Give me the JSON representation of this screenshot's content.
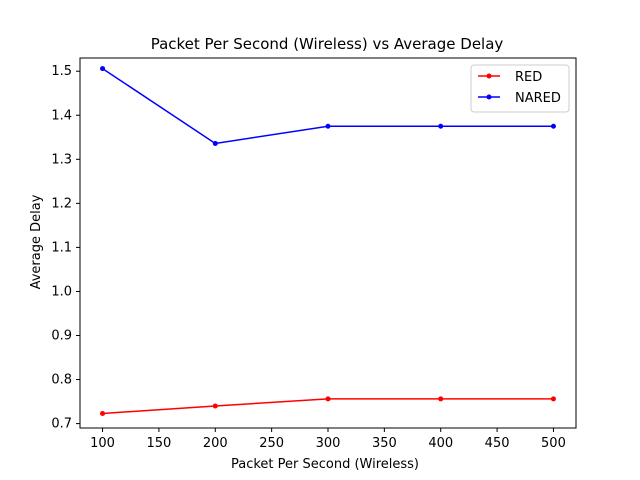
{
  "chart_data": {
    "type": "line",
    "title": "Packet Per Second (Wireless)  vs Average Delay",
    "xlabel": "Packet Per Second (Wireless)",
    "ylabel": "Average Delay",
    "x": [
      100,
      200,
      300,
      400,
      500
    ],
    "xlim": [
      80,
      520
    ],
    "ylim": [
      0.69,
      1.53
    ],
    "xticks": [
      100,
      150,
      200,
      250,
      300,
      350,
      400,
      450,
      500
    ],
    "xtick_labels": [
      "100",
      "150",
      "200",
      "250",
      "300",
      "350",
      "400",
      "450",
      "500"
    ],
    "yticks": [
      0.7,
      0.8,
      0.9,
      1.0,
      1.1,
      1.2,
      1.3,
      1.4,
      1.5
    ],
    "ytick_labels": [
      "0.7",
      "0.8",
      "0.9",
      "1.0",
      "1.1",
      "1.2",
      "1.3",
      "1.4",
      "1.5"
    ],
    "grid": false,
    "legend_position": "top-right",
    "series": [
      {
        "name": "RED",
        "color": "#ff0000",
        "marker": "dot",
        "values": [
          0.723,
          0.74,
          0.756,
          0.756,
          0.756
        ]
      },
      {
        "name": "NARED",
        "color": "#0000ff",
        "marker": "dot",
        "values": [
          1.506,
          1.336,
          1.375,
          1.375,
          1.375
        ]
      }
    ]
  }
}
